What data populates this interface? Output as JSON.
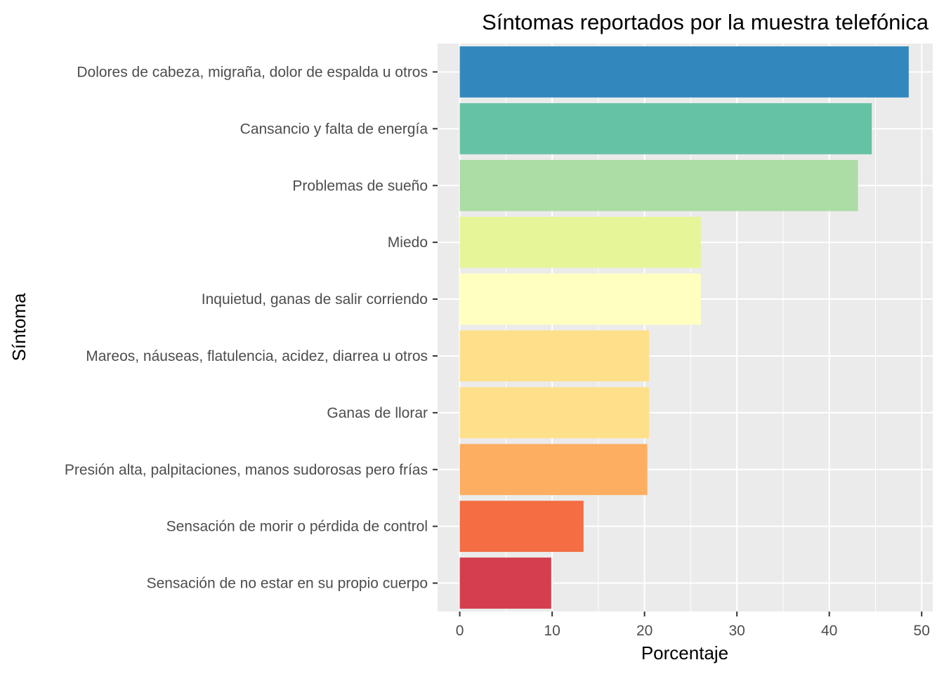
{
  "chart_data": {
    "type": "bar",
    "orientation": "horizontal",
    "title": "Síntomas reportados por la muestra telefónica",
    "xlabel": "Porcentaje",
    "ylabel": "Síntoma",
    "xlim": [
      -2.4,
      51.2
    ],
    "x_ticks": [
      "0",
      "10",
      "20",
      "30",
      "40",
      "50"
    ],
    "grid": true,
    "legend": "none",
    "background": "#ebebeb",
    "categories": [
      "Dolores de cabeza, migraña, dolor de espalda u otros",
      "Cansancio y falta de energía",
      "Problemas de sueño",
      "Miedo",
      "Inquietud, ganas de salir corriendo",
      "Mareos, náuseas, flatulencia, acidez, diarrea u otros",
      "Ganas de llorar",
      "Presión alta, palpitaciones, manos sudorosas pero frías",
      "Sensación de morir o pérdida de control",
      "Sensación de no estar en su propio cuerpo"
    ],
    "values": [
      48.6,
      44.6,
      43.1,
      26.1,
      26.1,
      20.5,
      20.5,
      20.3,
      13.4,
      9.9
    ],
    "colors": [
      "#3288bd",
      "#66c2a5",
      "#abdda4",
      "#e6f598",
      "#ffffbf",
      "#fee08b",
      "#fee08b",
      "#fdae61",
      "#f46d43",
      "#d53e4f"
    ]
  }
}
